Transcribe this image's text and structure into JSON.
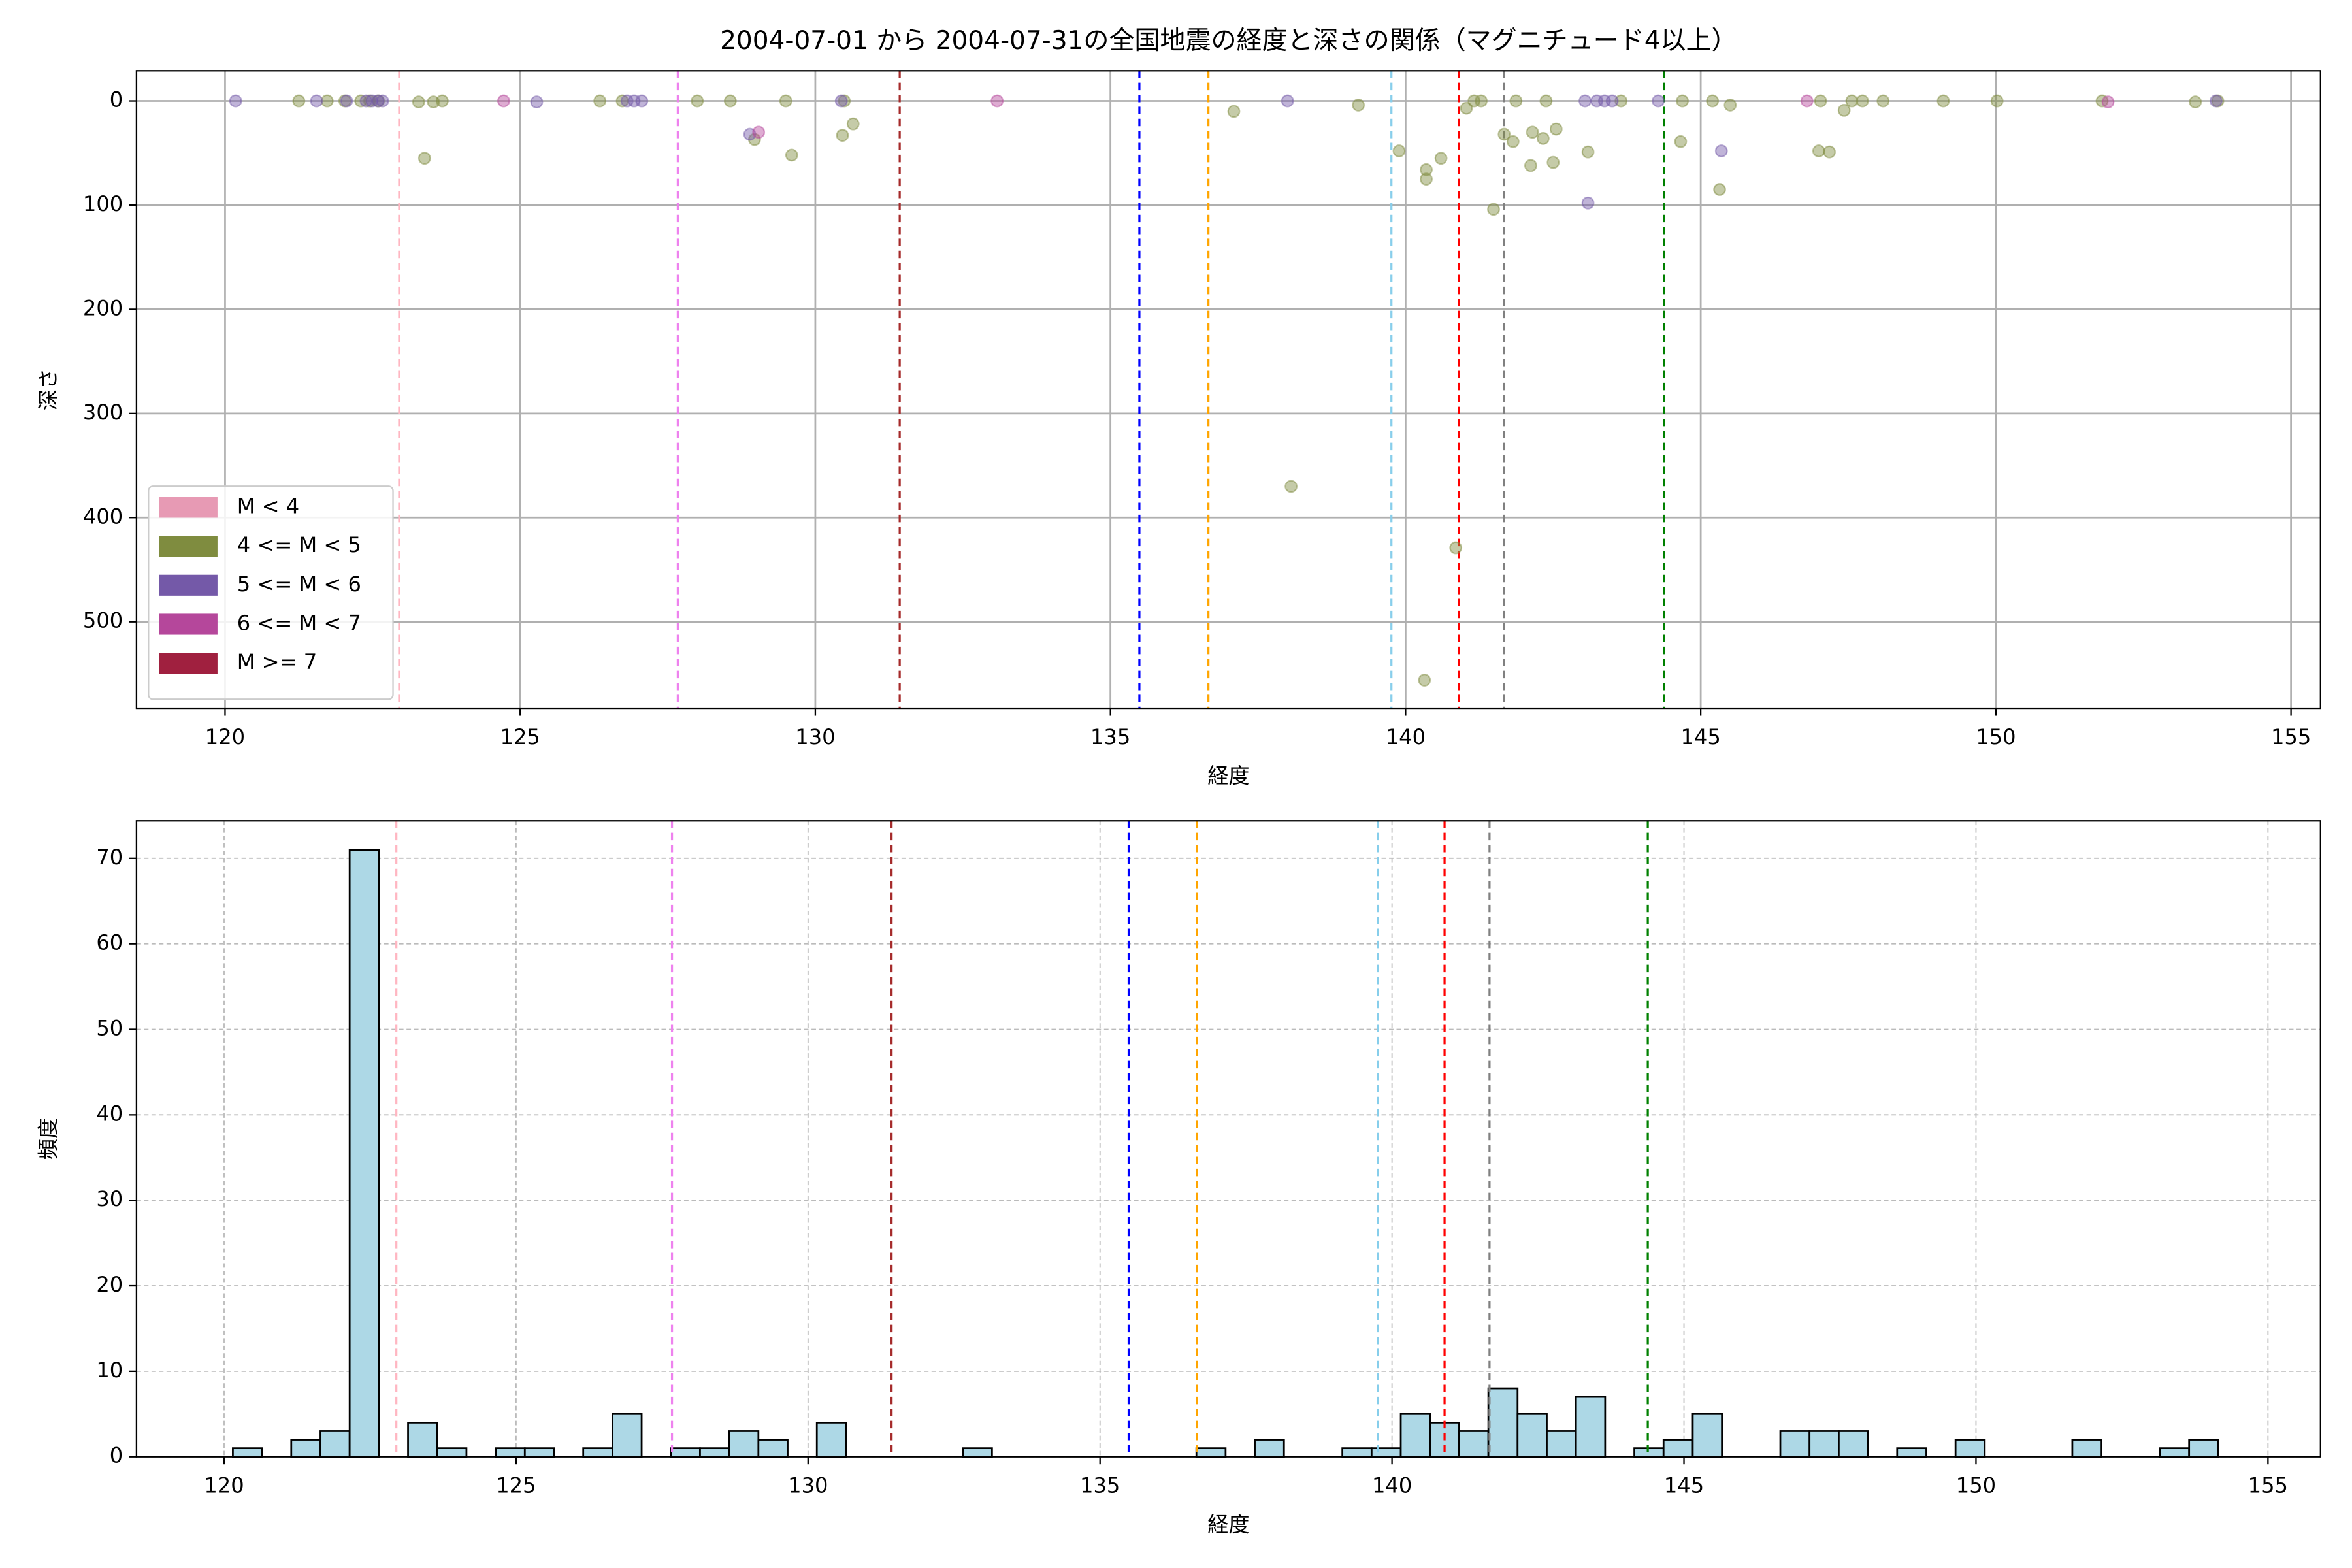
{
  "chart_data": [
    {
      "type": "scatter",
      "title": "2004-07-01 から 2004-07-31の全国地震の経度と深さの関係（マグニチュード4以上）",
      "xlabel": "経度",
      "ylabel": "深さ",
      "xlim": [
        118.5,
        155.5
      ],
      "ylim": [
        583,
        -29
      ],
      "xticks": [
        120,
        125,
        130,
        135,
        140,
        145,
        150,
        155
      ],
      "yticks": [
        0,
        100,
        200,
        300,
        400,
        500
      ],
      "grid": "solid",
      "legend": "lower left",
      "vlines": [
        {
          "x": 122.95,
          "color": "#ffb6c1"
        },
        {
          "x": 127.67,
          "color": "#ee82ee"
        },
        {
          "x": 131.43,
          "color": "#a52a2a"
        },
        {
          "x": 135.49,
          "color": "#0000ff"
        },
        {
          "x": 136.66,
          "color": "#ffa500"
        },
        {
          "x": 139.76,
          "color": "#87ceeb"
        },
        {
          "x": 140.9,
          "color": "#ff0000"
        },
        {
          "x": 141.67,
          "color": "#808080"
        },
        {
          "x": 144.38,
          "color": "#008000"
        }
      ],
      "series": [
        {
          "name": "M < 4",
          "color": "#e79ab4",
          "x": [],
          "values": []
        },
        {
          "name": "4 <= M < 5",
          "color": "#7f8c3f",
          "x": [
            121.25,
            121.73,
            122.03,
            122.3,
            122.45,
            122.6,
            123.28,
            123.38,
            123.53,
            123.68,
            126.35,
            126.73,
            128.0,
            128.56,
            128.97,
            129.5,
            129.6,
            130.46,
            130.64,
            130.49,
            137.09,
            138.06,
            139.2,
            139.89,
            140.35,
            140.35,
            140.6,
            140.85,
            140.32,
            141.03,
            141.16,
            141.28,
            141.49,
            141.67,
            141.82,
            141.87,
            142.12,
            142.15,
            142.33,
            142.38,
            142.5,
            142.55,
            143.09,
            143.65,
            144.69,
            144.66,
            145.2,
            145.32,
            145.5,
            147.03,
            147.0,
            147.18,
            147.43,
            147.56,
            147.74,
            148.09,
            149.11,
            150.02,
            151.8,
            153.38,
            153.76
          ],
          "values": [
            0,
            0,
            0,
            0,
            0,
            0,
            1,
            55,
            1,
            0,
            0,
            0,
            0,
            0,
            37,
            0,
            52,
            33,
            22,
            0,
            10,
            370,
            4,
            48,
            75,
            66,
            55,
            429,
            556,
            7,
            0,
            0,
            104,
            32,
            39,
            0,
            62,
            30,
            36,
            0,
            59,
            27,
            49,
            0,
            0,
            39,
            0,
            85,
            4,
            0,
            48,
            49,
            9,
            0,
            0,
            0,
            0,
            0,
            0,
            1,
            0
          ]
        },
        {
          "name": "5 <= M < 6",
          "color": "#7459a8",
          "x": [
            120.18,
            121.55,
            122.06,
            122.39,
            122.49,
            122.59,
            122.67,
            125.28,
            126.81,
            126.93,
            127.06,
            128.89,
            130.44,
            138.0,
            143.09,
            143.04,
            143.24,
            143.37,
            143.5,
            144.28,
            145.35,
            153.73
          ],
          "values": [
            0,
            0,
            0,
            0,
            0,
            0,
            0,
            1,
            0,
            0,
            0,
            32,
            0,
            0,
            98,
            0,
            0,
            0,
            0,
            0,
            48,
            0
          ]
        },
        {
          "name": "6 <= M < 7",
          "color": "#b5479b",
          "x": [
            124.72,
            129.04,
            133.08,
            146.8,
            151.9
          ],
          "values": [
            0,
            30,
            0,
            0,
            1
          ]
        },
        {
          "name": "M >= 7",
          "color": "#a0203f",
          "x": [],
          "values": []
        }
      ]
    },
    {
      "type": "histogram",
      "xlabel": "経度",
      "ylabel": "頻度",
      "xlim": [
        118.5,
        155.9
      ],
      "ylim": [
        0,
        74.4
      ],
      "xticks": [
        120,
        125,
        130,
        135,
        140,
        145,
        150,
        155
      ],
      "yticks": [
        0,
        10,
        20,
        30,
        40,
        50,
        60,
        70
      ],
      "grid": "dashed",
      "color": "#add8e6",
      "edgecolor": "#000000",
      "vlines": [
        {
          "x": 122.95,
          "color": "#ffb6c1"
        },
        {
          "x": 127.67,
          "color": "#ee82ee"
        },
        {
          "x": 131.43,
          "color": "#a52a2a"
        },
        {
          "x": 135.49,
          "color": "#0000ff"
        },
        {
          "x": 136.66,
          "color": "#ffa500"
        },
        {
          "x": 139.76,
          "color": "#87ceeb"
        },
        {
          "x": 140.9,
          "color": "#ff0000"
        },
        {
          "x": 141.67,
          "color": "#808080"
        },
        {
          "x": 144.38,
          "color": "#008000"
        }
      ],
      "bins": [
        120.15,
        120.65,
        121.15,
        121.65,
        122.15,
        122.65,
        123.15,
        123.65,
        124.15,
        124.65,
        125.15,
        125.65,
        126.15,
        126.65,
        127.15,
        127.65,
        128.15,
        128.65,
        129.15,
        129.65,
        130.15,
        130.65,
        131.15,
        131.65,
        132.15,
        132.65,
        133.15,
        133.65,
        134.15,
        134.65,
        135.15,
        135.65,
        136.15,
        136.65,
        137.15,
        137.65,
        138.15,
        138.65,
        139.15,
        139.65,
        140.15,
        140.65,
        141.15,
        141.65,
        142.15,
        142.65,
        143.15,
        143.65,
        144.15,
        144.65,
        145.15,
        145.65,
        146.15,
        146.65,
        147.15,
        147.65,
        148.15,
        148.65,
        149.15,
        149.65,
        150.15,
        150.65,
        151.15,
        151.65,
        152.15,
        152.65,
        153.15,
        153.65,
        154.15
      ],
      "values": [
        1,
        0,
        2,
        3,
        71,
        0,
        4,
        1,
        0,
        1,
        1,
        0,
        1,
        5,
        0,
        1,
        1,
        3,
        2,
        0,
        4,
        0,
        0,
        0,
        0,
        1,
        0,
        0,
        0,
        0,
        0,
        0,
        0,
        1,
        0,
        2,
        0,
        0,
        1,
        1,
        5,
        4,
        3,
        8,
        5,
        3,
        7,
        0,
        1,
        2,
        5,
        0,
        0,
        3,
        3,
        3,
        0,
        1,
        0,
        2,
        0,
        0,
        0,
        2,
        0,
        0,
        1,
        2
      ]
    }
  ]
}
